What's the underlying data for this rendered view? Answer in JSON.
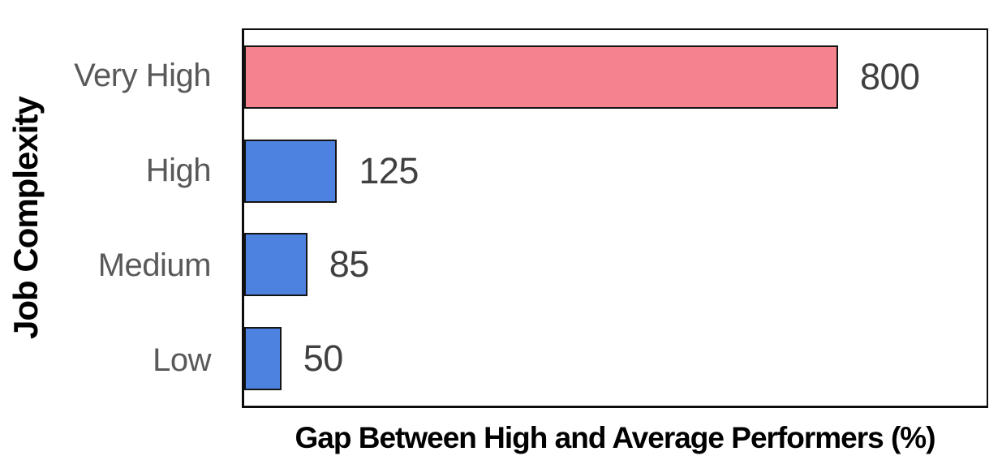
{
  "chart_data": {
    "type": "bar",
    "orientation": "horizontal",
    "title": "",
    "xlabel": "Gap Between High and Average Performers (%)",
    "ylabel": "Job Complexity",
    "categories": [
      "Very High",
      "High",
      "Medium",
      "Low"
    ],
    "values": [
      800,
      125,
      85,
      50
    ],
    "value_labels": [
      "800",
      "125",
      "85",
      "50"
    ],
    "bar_colors": [
      "#F4838D",
      "#4E82E0",
      "#4E82E0",
      "#4E82E0"
    ],
    "xlim": [
      0,
      1000
    ],
    "grid": false,
    "legend": "none",
    "value_labels_position": "right-of-bar"
  },
  "colors": {
    "highlight_bar_pink": "#F4838D",
    "default_bar_blue": "#4E82E0",
    "bar_border": "#141414",
    "plot_border": "#0d0d0d",
    "category_label": "#595959",
    "value_label": "#404040",
    "axis_title": "#000000",
    "background": "#FFFFFF"
  }
}
